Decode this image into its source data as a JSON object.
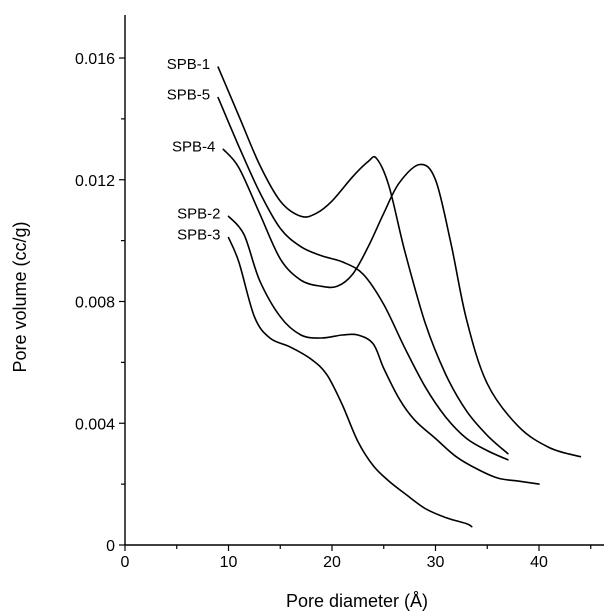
{
  "chart_data": {
    "type": "line",
    "xlabel": "Pore diameter (Å)",
    "ylabel": "Pore volume (cc/g)",
    "xlim": [
      0,
      45
    ],
    "ylim": [
      0,
      0.0175
    ],
    "x_ticks": [
      0,
      10,
      20,
      30,
      40
    ],
    "x_tick_labels": [
      "0",
      "10",
      "20",
      "30",
      "40"
    ],
    "y_ticks": [
      0,
      0.004,
      0.008,
      0.012,
      0.016
    ],
    "y_tick_labels": [
      "0",
      "0.004",
      "0.008",
      "0.012",
      "0.016"
    ],
    "grid": false,
    "series": [
      {
        "name": "SPB-1",
        "x": [
          9,
          11,
          13,
          15,
          17,
          18.5,
          20,
          22,
          23.5,
          24.3,
          25.5,
          27,
          29,
          31,
          33,
          35,
          37
        ],
        "y": [
          0.0157,
          0.0141,
          0.0125,
          0.0113,
          0.0108,
          0.0109,
          0.0113,
          0.0121,
          0.0126,
          0.0127,
          0.0118,
          0.0097,
          0.0073,
          0.0056,
          0.0044,
          0.0036,
          0.003
        ]
      },
      {
        "name": "SPB-5",
        "x": [
          9,
          11,
          13,
          15,
          17,
          19,
          21,
          23,
          25,
          27,
          29,
          31,
          33,
          35,
          37
        ],
        "y": [
          0.0147,
          0.0131,
          0.0116,
          0.0104,
          0.0098,
          0.0095,
          0.0093,
          0.0089,
          0.0079,
          0.0065,
          0.0052,
          0.0042,
          0.0035,
          0.0031,
          0.0028
        ]
      },
      {
        "name": "SPB-4",
        "x": [
          9.5,
          11,
          13,
          15,
          17,
          19,
          20.5,
          22,
          23.5,
          25,
          26.5,
          28.5,
          30,
          31.5,
          33,
          35,
          38,
          41,
          44
        ],
        "y": [
          0.013,
          0.0124,
          0.0109,
          0.0094,
          0.0087,
          0.0085,
          0.0085,
          0.0089,
          0.0098,
          0.0109,
          0.0119,
          0.0125,
          0.012,
          0.0099,
          0.0074,
          0.0053,
          0.0039,
          0.0032,
          0.0029
        ]
      },
      {
        "name": "SPB-2",
        "x": [
          10,
          11.5,
          13,
          15,
          17,
          19,
          21,
          22.5,
          24,
          25,
          26.5,
          28,
          30,
          32,
          34,
          36,
          38,
          40
        ],
        "y": [
          0.0108,
          0.0102,
          0.0087,
          0.0075,
          0.0069,
          0.0068,
          0.0069,
          0.0069,
          0.0066,
          0.0058,
          0.0048,
          0.0041,
          0.0035,
          0.0029,
          0.0025,
          0.0022,
          0.0021,
          0.002
        ]
      },
      {
        "name": "SPB-3",
        "x": [
          10,
          11,
          12.5,
          14,
          16,
          18,
          19.5,
          21,
          22.5,
          24,
          25.5,
          27,
          29,
          31,
          33,
          33.5
        ],
        "y": [
          0.0101,
          0.0093,
          0.0075,
          0.0068,
          0.0065,
          0.0061,
          0.0056,
          0.0046,
          0.0034,
          0.0026,
          0.0021,
          0.0017,
          0.0012,
          0.0009,
          0.0007,
          0.0006
        ]
      }
    ]
  }
}
